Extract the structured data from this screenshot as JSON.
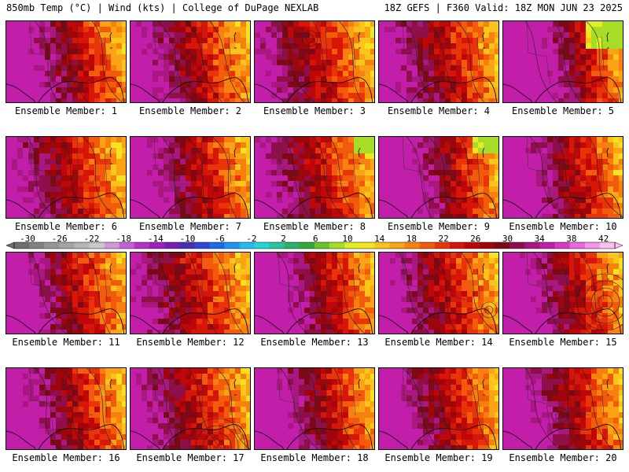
{
  "header": {
    "left": "850mb Temp (°C) | Wind (kts) | College of DuPage NEXLAB",
    "right": "18Z GEFS | F360 Valid: 18Z MON JUN 23 2025"
  },
  "colorbar": {
    "labels": [
      "-30",
      "-26",
      "-22",
      "-18",
      "-14",
      "-10",
      "-6",
      "-2",
      "2",
      "6",
      "10",
      "14",
      "18",
      "22",
      "26",
      "30",
      "34",
      "38",
      "42"
    ],
    "colors": [
      "#6e6e6e",
      "#7f837e",
      "#939893",
      "#a4a4a4",
      "#b6b6b6",
      "#c9c9c9",
      "#cf9ad6",
      "#c55fd4",
      "#b82fca",
      "#9e1ec0",
      "#7a1cb0",
      "#4b2bb8",
      "#2b49d6",
      "#1b6ae8",
      "#1f93f3",
      "#26baf2",
      "#22d6d6",
      "#27c4a0",
      "#2cb06a",
      "#36a83a",
      "#6cc42a",
      "#a7dd26",
      "#e0ef23",
      "#f6e31f",
      "#f9c51a",
      "#f9a315",
      "#f7800f",
      "#f25a0c",
      "#e9340a",
      "#d71509",
      "#be0708",
      "#9e060c",
      "#7d0816",
      "#8e0f4a",
      "#a81880",
      "#c21ea9",
      "#d939c7",
      "#ec66dd",
      "#f693ea",
      "#fbc0f2"
    ]
  },
  "panels": [
    {
      "label": "Ensemble Member: 1",
      "warmth": 0.95,
      "seed": 1
    },
    {
      "label": "Ensemble Member: 2",
      "warmth": 0.85,
      "seed": 2
    },
    {
      "label": "Ensemble Member: 3",
      "warmth": 0.75,
      "seed": 3
    },
    {
      "label": "Ensemble Member: 4",
      "warmth": 0.85,
      "seed": 4
    },
    {
      "label": "Ensemble Member: 5",
      "warmth": 1.15,
      "seed": 5
    },
    {
      "label": "Ensemble Member: 6",
      "warmth": 0.8,
      "seed": 6
    },
    {
      "label": "Ensemble Member: 7",
      "warmth": 0.9,
      "seed": 7
    },
    {
      "label": "Ensemble Member: 8",
      "warmth": 0.8,
      "seed": 8
    },
    {
      "label": "Ensemble Member: 9",
      "warmth": 1.05,
      "seed": 9
    },
    {
      "label": "Ensemble Member: 10",
      "warmth": 0.95,
      "seed": 10
    },
    {
      "label": "Ensemble Member: 11",
      "warmth": 0.9,
      "seed": 11
    },
    {
      "label": "Ensemble Member: 12",
      "warmth": 0.75,
      "seed": 12
    },
    {
      "label": "Ensemble Member: 13",
      "warmth": 1.0,
      "seed": 13
    },
    {
      "label": "Ensemble Member: 14",
      "warmth": 0.85,
      "seed": 14
    },
    {
      "label": "Ensemble Member: 15",
      "warmth": 0.95,
      "seed": 15
    },
    {
      "label": "Ensemble Member: 16",
      "warmth": 0.9,
      "seed": 16
    },
    {
      "label": "Ensemble Member: 17",
      "warmth": 0.8,
      "seed": 17
    },
    {
      "label": "Ensemble Member: 18",
      "warmth": 0.95,
      "seed": 18
    },
    {
      "label": "Ensemble Member: 19",
      "warmth": 0.9,
      "seed": 19
    },
    {
      "label": "Ensemble Member: 20",
      "warmth": 0.95,
      "seed": 20
    }
  ]
}
